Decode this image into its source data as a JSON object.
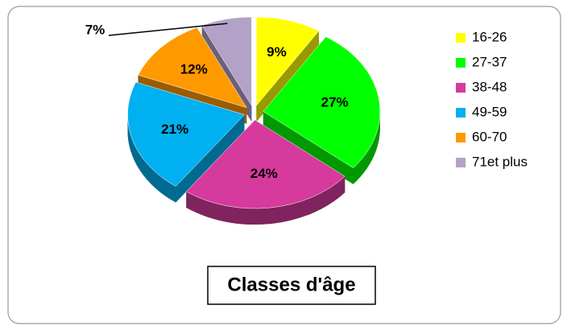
{
  "chart_data": {
    "type": "pie",
    "title": "Classes d'âge",
    "categories": [
      "16-26",
      "27-37",
      "38-48",
      "49-59",
      "60-70",
      "71et plus"
    ],
    "values": [
      9,
      27,
      24,
      21,
      12,
      7
    ],
    "value_labels": [
      "9%",
      "27%",
      "24%",
      "21%",
      "12%",
      "7%"
    ],
    "colors": [
      "#ffff00",
      "#00ff00",
      "#d63a9c",
      "#00b0f0",
      "#ff9900",
      "#b3a2c7"
    ],
    "legend": "right"
  }
}
